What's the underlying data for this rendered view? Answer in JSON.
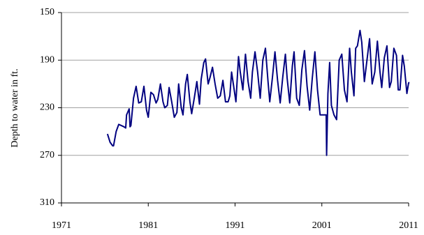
{
  "chart_data": {
    "type": "line",
    "y_label": "Depth to water in ft.",
    "color": "#000080",
    "grid": true,
    "xlim": [
      1971,
      2011
    ],
    "xticks": [
      1971,
      1981,
      1991,
      2001,
      2011
    ],
    "ylim": [
      310,
      150
    ],
    "yticks": [
      150,
      190,
      230,
      270,
      310
    ],
    "x": [
      1976.3,
      1976.6,
      1976.9,
      1977.0,
      1977.3,
      1977.6,
      1977.9,
      1978.2,
      1978.4,
      1978.5,
      1978.8,
      1978.9,
      1979.0,
      1979.3,
      1979.6,
      1979.9,
      1980.2,
      1980.5,
      1980.8,
      1981.0,
      1981.3,
      1981.6,
      1981.9,
      1982.1,
      1982.4,
      1982.7,
      1982.9,
      1983.2,
      1983.4,
      1983.7,
      1984.0,
      1984.3,
      1984.5,
      1984.8,
      1985.0,
      1985.3,
      1985.5,
      1985.8,
      1986.0,
      1986.3,
      1986.6,
      1986.9,
      1987.1,
      1987.4,
      1987.6,
      1987.9,
      1988.1,
      1988.4,
      1988.7,
      1989.0,
      1989.3,
      1989.6,
      1989.9,
      1990.2,
      1990.4,
      1990.6,
      1990.9,
      1991.1,
      1991.4,
      1991.6,
      1991.9,
      1992.2,
      1992.5,
      1992.8,
      1993.0,
      1993.3,
      1993.6,
      1993.9,
      1994.2,
      1994.5,
      1994.8,
      1995.0,
      1995.3,
      1995.6,
      1995.9,
      1996.2,
      1996.5,
      1996.8,
      1997.0,
      1997.3,
      1997.6,
      1997.8,
      1998.1,
      1998.4,
      1998.7,
      1999.0,
      1999.3,
      1999.6,
      1999.9,
      2000.2,
      2000.5,
      2000.8,
      2001.0,
      2001.3,
      2001.5,
      2001.55,
      2001.7,
      2001.9,
      2002.1,
      2002.4,
      2002.7,
      2003.0,
      2003.3,
      2003.6,
      2003.9,
      2004.2,
      2004.4,
      2004.7,
      2004.9,
      2005.1,
      2005.4,
      2005.6,
      2005.9,
      2006.2,
      2006.5,
      2006.8,
      2007.1,
      2007.4,
      2007.7,
      2007.9,
      2008.2,
      2008.5,
      2008.8,
      2009.0,
      2009.3,
      2009.6,
      2009.8,
      2010.0,
      2010.3,
      2010.5,
      2010.8,
      2011.0,
      2011.1
    ],
    "values": [
      252,
      259,
      262,
      262,
      250,
      244,
      245,
      246,
      247,
      236,
      231,
      246,
      245,
      222,
      212,
      226,
      225,
      212,
      232,
      238,
      217,
      219,
      226,
      223,
      210,
      225,
      230,
      228,
      213,
      225,
      238,
      234,
      210,
      230,
      236,
      210,
      202,
      225,
      235,
      222,
      208,
      227,
      206,
      192,
      189,
      210,
      205,
      196,
      210,
      222,
      220,
      207,
      225,
      225,
      220,
      200,
      215,
      225,
      187,
      200,
      215,
      185,
      208,
      222,
      200,
      183,
      200,
      222,
      190,
      180,
      208,
      225,
      205,
      183,
      207,
      226,
      204,
      185,
      205,
      226,
      195,
      183,
      222,
      228,
      198,
      182,
      212,
      232,
      205,
      183,
      215,
      236,
      236,
      236,
      236,
      270,
      218,
      192,
      228,
      236,
      240,
      190,
      185,
      215,
      225,
      180,
      200,
      220,
      180,
      178,
      165,
      175,
      208,
      190,
      172,
      210,
      200,
      174,
      200,
      213,
      188,
      178,
      213,
      208,
      180,
      186,
      215,
      215,
      186,
      195,
      218,
      209,
      209
    ]
  }
}
